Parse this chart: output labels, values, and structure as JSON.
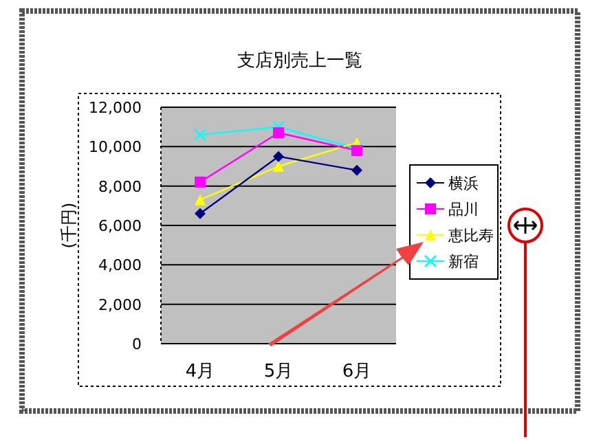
{
  "chart_data": {
    "type": "line",
    "title": "支店別売上一覧",
    "ylabel": "(千円)",
    "categories": [
      "4月",
      "5月",
      "6月"
    ],
    "series": [
      {
        "name": "横浜",
        "color": "#000080",
        "marker": "diamond",
        "values": [
          6600,
          9500,
          8800
        ]
      },
      {
        "name": "品川",
        "color": "#ff00ff",
        "marker": "square",
        "values": [
          8200,
          10700,
          9800
        ]
      },
      {
        "name": "恵比寿",
        "color": "#ffff00",
        "marker": "triangle",
        "values": [
          7300,
          9000,
          10200
        ]
      },
      {
        "name": "新宿",
        "color": "#00ffff",
        "marker": "cross",
        "values": [
          10600,
          11000,
          9900
        ]
      }
    ],
    "ylim": [
      0,
      12000
    ],
    "yticks": [
      {
        "value": 0,
        "label": "0"
      },
      {
        "value": 2000,
        "label": "2,000"
      },
      {
        "value": 4000,
        "label": "4,000"
      },
      {
        "value": 6000,
        "label": "6,000"
      },
      {
        "value": 8000,
        "label": "8,000"
      },
      {
        "value": 10000,
        "label": "10,000"
      },
      {
        "value": 12000,
        "label": "12,000"
      }
    ],
    "grid": "y",
    "legend": "right"
  }
}
